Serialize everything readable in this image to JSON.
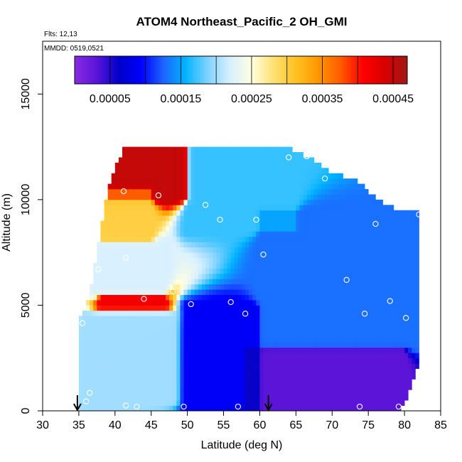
{
  "chart_data": {
    "type": "heatmap",
    "title": "ATOM4 Northeast_Pacific_2 OH_GMI",
    "annotations": [
      "Flts: 12,13",
      "MMDD: 0519,0521"
    ],
    "xlabel": "Latitude (deg N)",
    "ylabel": "Altitude (m)",
    "xlim": [
      30,
      85
    ],
    "ylim": [
      0,
      17500
    ],
    "xticks": [
      "30",
      "35",
      "40",
      "45",
      "50",
      "55",
      "60",
      "65",
      "70",
      "75",
      "80",
      "85"
    ],
    "yticks": [
      "0",
      "5000",
      "10000",
      "15000"
    ],
    "colorbar": {
      "range": [
        0.0,
        0.00047
      ],
      "tick_labels": [
        "0.00005",
        "0.00015",
        "0.00025",
        "0.00035",
        "0.00045"
      ],
      "tick_values": [
        5e-05,
        0.00015,
        0.00025,
        0.00035,
        0.00045
      ],
      "colors": [
        "#8a2be2",
        "#5a14d8",
        "#0000c8",
        "#0000ff",
        "#1e64ff",
        "#00b4ff",
        "#7fd2ff",
        "#d8f0ff",
        "#ffffe0",
        "#ffe070",
        "#ffc020",
        "#ff9600",
        "#ff5a00",
        "#ff0000",
        "#d80000",
        "#a01818"
      ]
    },
    "column_bounds": [
      {
        "lat": 35.5,
        "bottom": 0,
        "top": 4500
      },
      {
        "lat": 36.5,
        "bottom": 0,
        "top": 5500
      },
      {
        "lat": 37.5,
        "bottom": 0,
        "top": 7500
      },
      {
        "lat": 38.5,
        "bottom": 0,
        "top": 9400
      },
      {
        "lat": 39.5,
        "bottom": 0,
        "top": 11000
      },
      {
        "lat": 41.5,
        "bottom": 0,
        "top": 12500
      },
      {
        "lat": 45,
        "bottom": 0,
        "top": 12500
      },
      {
        "lat": 50,
        "bottom": 0,
        "top": 12500
      },
      {
        "lat": 55,
        "bottom": 0,
        "top": 12500
      },
      {
        "lat": 60,
        "bottom": 0,
        "top": 12500
      },
      {
        "lat": 63,
        "bottom": 0,
        "top": 12500
      },
      {
        "lat": 66,
        "bottom": 0,
        "top": 12000
      },
      {
        "lat": 68,
        "bottom": 0,
        "top": 11700
      },
      {
        "lat": 70,
        "bottom": 0,
        "top": 11100
      },
      {
        "lat": 73,
        "bottom": 0,
        "top": 10900
      },
      {
        "lat": 76,
        "bottom": 0,
        "top": 10000
      },
      {
        "lat": 79,
        "bottom": 0,
        "top": 9400
      },
      {
        "lat": 80.5,
        "bottom": 800,
        "top": 9300
      },
      {
        "lat": 81.5,
        "bottom": 2000,
        "top": 9500
      }
    ],
    "field_regions": [
      {
        "region": "upper-left core",
        "lat_range": [
          38,
          50
        ],
        "alt_range": [
          10000,
          12500
        ],
        "value": 0.00045
      },
      {
        "region": "upper-left band",
        "lat_range": [
          37,
          45
        ],
        "alt_range": [
          8000,
          10500
        ],
        "value": 0.0003
      },
      {
        "region": "mid-left",
        "lat_range": [
          37,
          47
        ],
        "alt_range": [
          5500,
          8000
        ],
        "value": 0.00022
      },
      {
        "region": "thin red layer",
        "lat_range": [
          38,
          47
        ],
        "alt_range": [
          5000,
          5500
        ],
        "value": 0.00042
      },
      {
        "region": "lower-left",
        "lat_range": [
          36,
          48
        ],
        "alt_range": [
          500,
          4500
        ],
        "value": 0.0002
      },
      {
        "region": "mid-latitude upper",
        "lat_range": [
          50,
          65
        ],
        "alt_range": [
          8500,
          12500
        ],
        "value": 0.00017
      },
      {
        "region": "mid-latitude lower",
        "lat_range": [
          50,
          60
        ],
        "alt_range": [
          0,
          5000
        ],
        "value": 9e-05
      },
      {
        "region": "northern free troposphere",
        "lat_range": [
          60,
          82
        ],
        "alt_range": [
          3000,
          9500
        ],
        "value": 0.00013
      },
      {
        "region": "northern boundary layer",
        "lat_range": [
          58,
          80
        ],
        "alt_range": [
          0,
          3000
        ],
        "value": 3e-05
      }
    ],
    "sample_points": [
      {
        "lat": 40,
        "alt": 12200
      },
      {
        "lat": 64,
        "alt": 12000
      },
      {
        "lat": 66.5,
        "alt": 12050
      },
      {
        "lat": 69,
        "alt": 11000
      },
      {
        "lat": 41.2,
        "alt": 10400
      },
      {
        "lat": 46,
        "alt": 10200
      },
      {
        "lat": 52.5,
        "alt": 9750
      },
      {
        "lat": 54.5,
        "alt": 9050
      },
      {
        "lat": 59.5,
        "alt": 9050
      },
      {
        "lat": 76,
        "alt": 8850
      },
      {
        "lat": 82,
        "alt": 9300
      },
      {
        "lat": 60.5,
        "alt": 7400
      },
      {
        "lat": 41.5,
        "alt": 7250
      },
      {
        "lat": 37.7,
        "alt": 6700
      },
      {
        "lat": 72,
        "alt": 6200
      },
      {
        "lat": 48,
        "alt": 5650
      },
      {
        "lat": 44,
        "alt": 5300
      },
      {
        "lat": 50.5,
        "alt": 5050
      },
      {
        "lat": 56,
        "alt": 5150
      },
      {
        "lat": 58,
        "alt": 4600
      },
      {
        "lat": 74.5,
        "alt": 4600
      },
      {
        "lat": 78,
        "alt": 5200
      },
      {
        "lat": 80.2,
        "alt": 4400
      },
      {
        "lat": 35.5,
        "alt": 4150
      },
      {
        "lat": 36.5,
        "alt": 850
      },
      {
        "lat": 36,
        "alt": 450
      },
      {
        "lat": 41.5,
        "alt": 250
      },
      {
        "lat": 43,
        "alt": 200
      },
      {
        "lat": 49.5,
        "alt": 200
      },
      {
        "lat": 57,
        "alt": 200
      },
      {
        "lat": 73.8,
        "alt": 200
      },
      {
        "lat": 79.2,
        "alt": 200
      }
    ],
    "arrows": [
      {
        "lat": 34.8
      },
      {
        "lat": 61.2
      }
    ]
  }
}
